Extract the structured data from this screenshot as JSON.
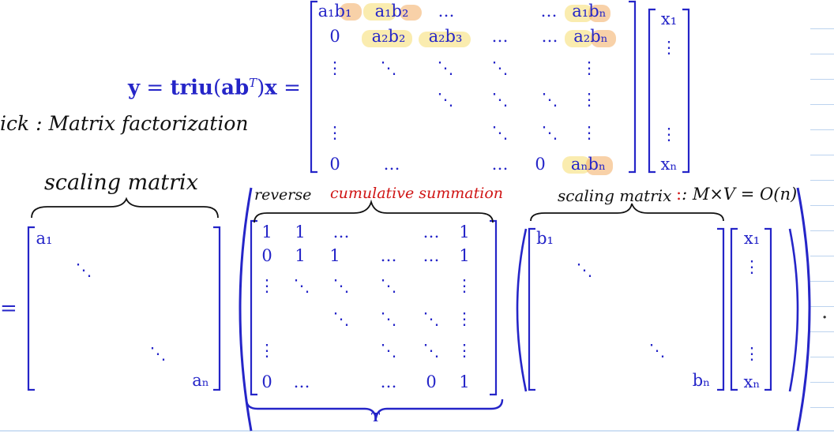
{
  "equation": {
    "lhs_y": "y",
    "lhs_eq1": " = ",
    "lhs_triu": "triu",
    "lhs_open": "(",
    "lhs_ab": "ab",
    "lhs_sup": "T",
    "lhs_close": ")",
    "lhs_x": "x",
    "lhs_eq2": " =",
    "second_equals": "=",
    "trailing_period": ".",
    "t_label": "T"
  },
  "annotations": {
    "trick": "ick : Matrix factorization",
    "scaling_matrix_left": "scaling matrix",
    "reverse": "reverse",
    "cumulative_summation": "cumulative summation",
    "scaling_matrix_right": "scaling matrix",
    "complexity": ": M×V = O(n)"
  },
  "matrix_top": {
    "r1": [
      "a₁b₁",
      "a₁b₂",
      "…",
      "…",
      "a₁bₙ"
    ],
    "r2": [
      "0",
      "a₂b₂",
      "a₂b₃",
      "…",
      "…",
      "a₂bₙ"
    ],
    "r_last": [
      "0",
      "…",
      "…",
      "0",
      "aₙbₙ"
    ],
    "vdots": "⋮",
    "ddots": "⋱"
  },
  "vector_top": [
    "x₁",
    "⋮",
    "⋮",
    "xₙ"
  ],
  "diag_a": {
    "first": "a₁",
    "last": "aₙ",
    "ddots": "⋱"
  },
  "matrix_t": {
    "r1": [
      "1",
      "1",
      "…",
      "…",
      "1"
    ],
    "r2": [
      "0",
      "1",
      "1",
      "…",
      "…",
      "1"
    ],
    "r_last": [
      "0",
      "…",
      "…",
      "0",
      "1"
    ],
    "vdots": "⋮",
    "ddots": "⋱"
  },
  "diag_b": {
    "first": "b₁",
    "last": "bₙ",
    "ddots": "⋱"
  },
  "vector_bottom": [
    "x₁",
    "⋮",
    "⋮",
    "xₙ"
  ],
  "colors": {
    "math_blue": "#2525c8",
    "handwriting": "#111111",
    "red_ink": "#d01515",
    "highlight_orange": "#f4b36e",
    "highlight_yellow": "#f7e07a"
  }
}
